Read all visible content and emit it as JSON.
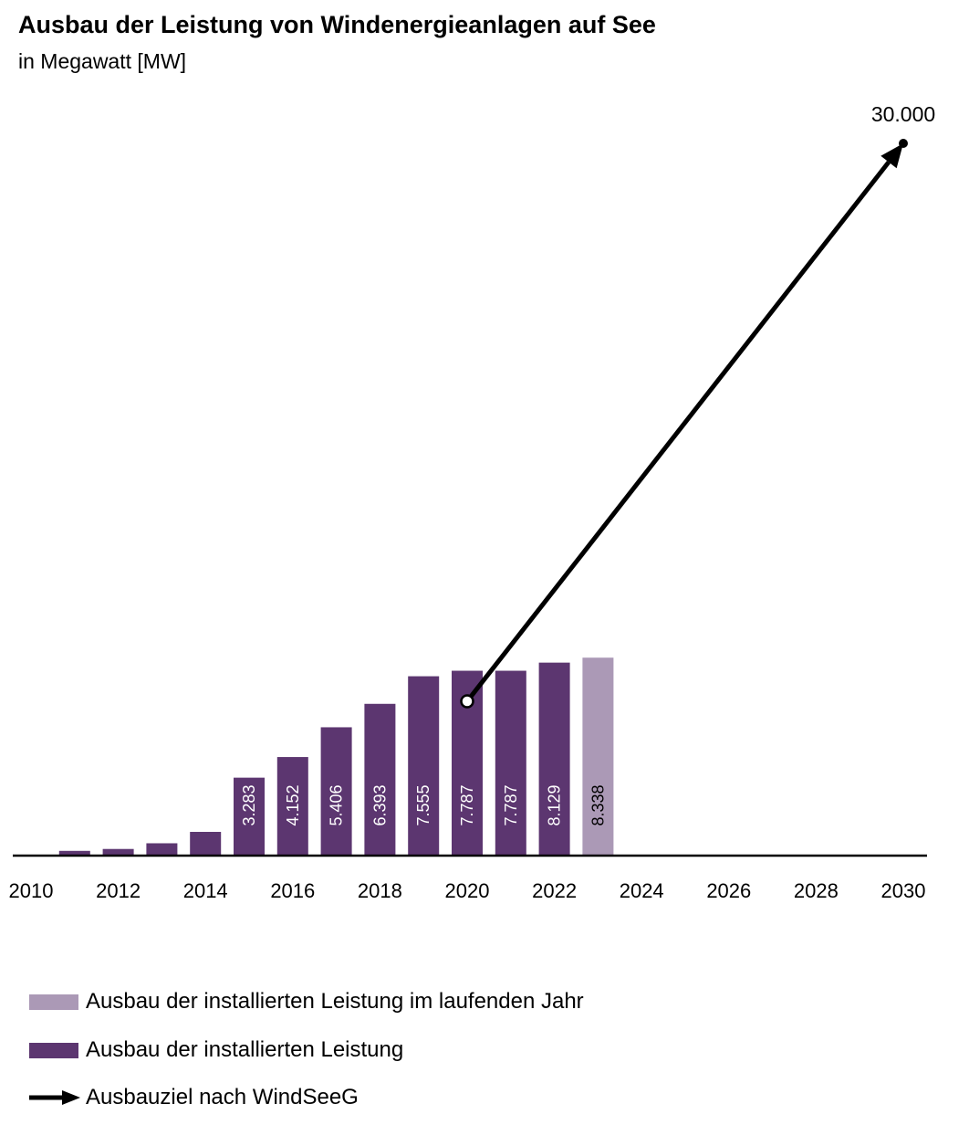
{
  "title": "Ausbau der Leistung von Windenergieanlagen auf See",
  "subtitle": "in Megawatt [MW]",
  "chart_data": {
    "type": "bar",
    "categories": [
      "2011",
      "2012",
      "2013",
      "2014",
      "2015",
      "2016",
      "2017",
      "2018",
      "2019",
      "2020",
      "2021",
      "2022",
      "2023"
    ],
    "series": [
      {
        "name": "Ausbau der installierten Leistung",
        "values": [
          200,
          280,
          520,
          1000,
          3283,
          4152,
          5406,
          6393,
          7555,
          7787,
          7787,
          8129,
          null
        ],
        "labels": [
          "",
          "",
          "",
          "",
          "3.283",
          "4.152",
          "5.406",
          "6.393",
          "7.555",
          "7.787",
          "7.787",
          "8.129",
          ""
        ],
        "color": "#5c3670"
      },
      {
        "name": "Ausbau der installierten Leistung im laufenden Jahr",
        "values": [
          null,
          null,
          null,
          null,
          null,
          null,
          null,
          null,
          null,
          null,
          null,
          null,
          8338
        ],
        "labels": [
          "",
          "",
          "",
          "",
          "",
          "",
          "",
          "",
          "",
          "",
          "",
          "",
          "8.338"
        ],
        "color": "#ab99b6"
      }
    ],
    "xlim": [
      2010,
      2030
    ],
    "xticks": [
      "2010",
      "2012",
      "2014",
      "2016",
      "2018",
      "2020",
      "2022",
      "2024",
      "2026",
      "2028",
      "2030"
    ],
    "ylim": [
      0,
      30000
    ],
    "target": {
      "name": "Ausbauziel nach WindSeeG",
      "from": {
        "x": 2020,
        "y": 6500
      },
      "to": {
        "x": 2030,
        "y": 30000
      },
      "label": "30.000",
      "color": "#000000"
    },
    "grid": false,
    "legend_position": "bottom-left"
  },
  "legend": [
    {
      "label": "Ausbau der installierten Leistung im laufenden Jahr",
      "type": "swatch",
      "color": "#ab99b6"
    },
    {
      "label": "Ausbau der installierten Leistung",
      "type": "swatch",
      "color": "#5c3670"
    },
    {
      "label": "Ausbauziel nach WindSeeG",
      "type": "arrow",
      "color": "#000000"
    }
  ]
}
